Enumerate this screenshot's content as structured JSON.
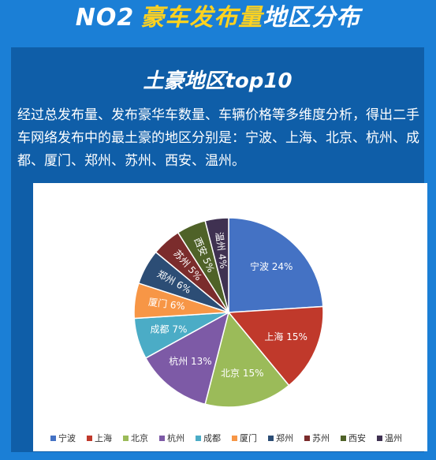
{
  "banner": {
    "number": "NO2",
    "highlight": "豪车发布量",
    "rest": "地区分布"
  },
  "subtitle": "土豪地区top10",
  "description": "经过总发布量、发布豪华车数量、车辆价格等多维度分析，得出二手车网络发布中的最土豪的地区分别是：宁波、上海、北京、杭州、成都、厦门、郑州、苏州、西安、温州。",
  "chart_data": {
    "type": "pie",
    "categories": [
      "宁波",
      "上海",
      "北京",
      "杭州",
      "成都",
      "厦门",
      "郑州",
      "苏州",
      "西安",
      "温州"
    ],
    "values": [
      24,
      15,
      15,
      13,
      7,
      6,
      6,
      5,
      5,
      4
    ],
    "unit": "%",
    "colors": [
      "#4472c4",
      "#c0392b",
      "#9bbb59",
      "#7d5aa6",
      "#4bacc6",
      "#f79646",
      "#2c4d75",
      "#7b2c2c",
      "#4f6228",
      "#3f3151"
    ],
    "legend_position": "bottom"
  }
}
